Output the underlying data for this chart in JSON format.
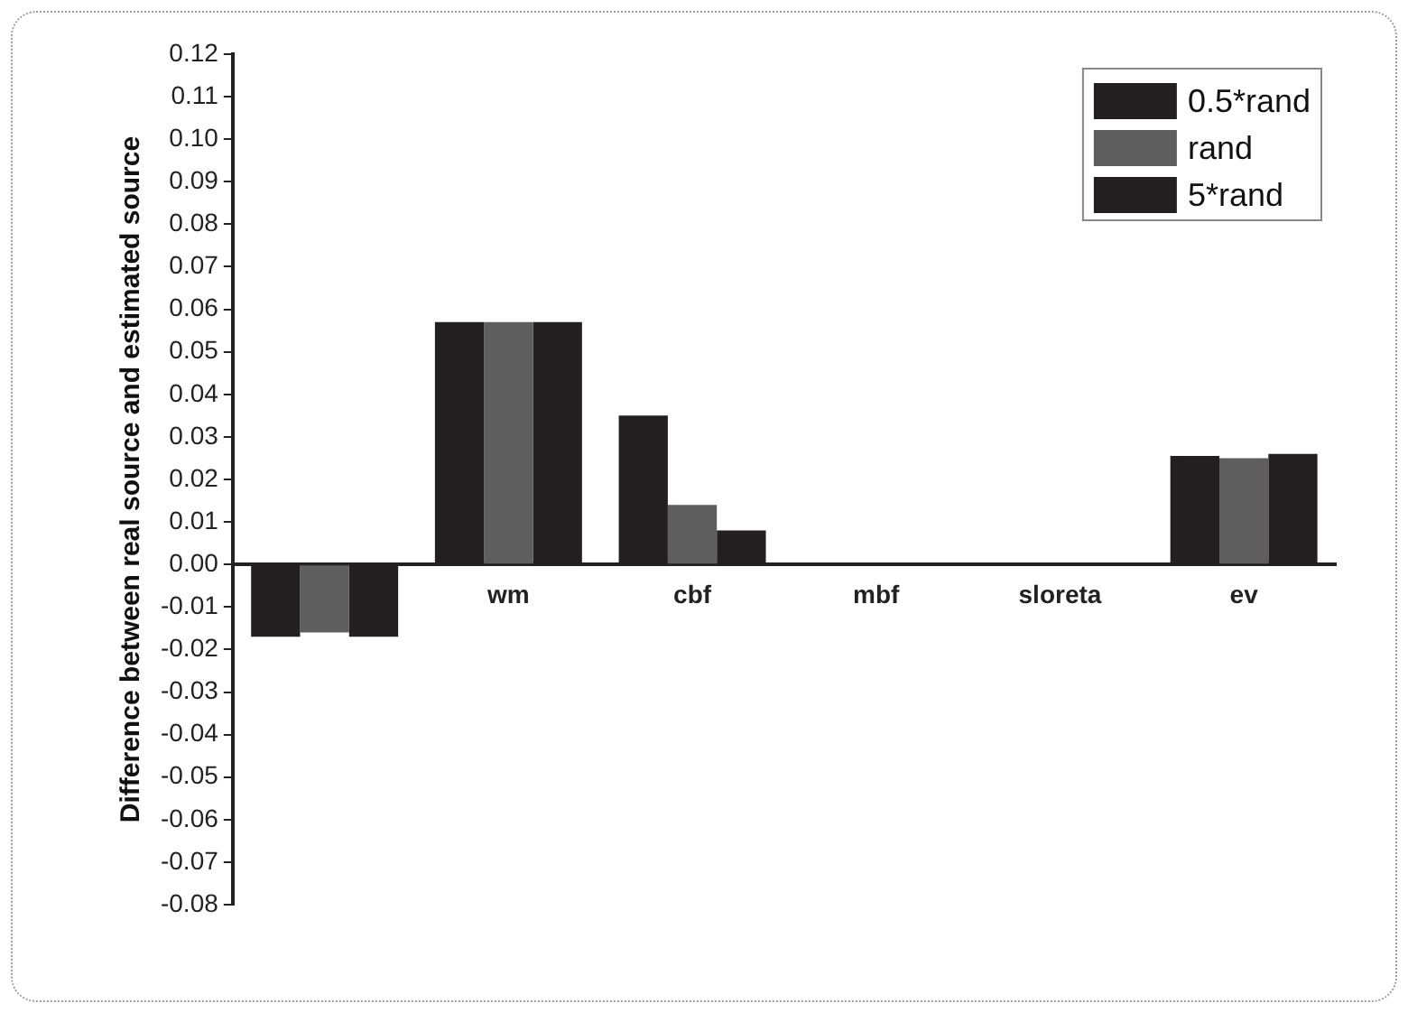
{
  "chart_data": {
    "type": "bar",
    "ylabel": "Difference between real source and estimated source",
    "categories": [
      null,
      "wm",
      "cbf",
      "mbf",
      "sloreta",
      "ev"
    ],
    "series": [
      {
        "name": "0.5*rand",
        "color": "#231f20",
        "values": [
          -0.017,
          0.057,
          0.035,
          0,
          0,
          0.0255
        ]
      },
      {
        "name": "rand",
        "color": "#5e5e5e",
        "values": [
          -0.016,
          0.057,
          0.014,
          0,
          0,
          0.025
        ]
      },
      {
        "name": "5*rand",
        "color": "#231f20",
        "values": [
          -0.017,
          0.057,
          0.008,
          0,
          0,
          0.026
        ]
      }
    ],
    "ylim": [
      -0.08,
      0.12
    ],
    "yticks": [
      {
        "value": -0.08,
        "label": "-0.08"
      },
      {
        "value": -0.07,
        "label": "-0.07"
      },
      {
        "value": -0.06,
        "label": "-0.06"
      },
      {
        "value": -0.05,
        "label": "-0.05"
      },
      {
        "value": -0.04,
        "label": "-0.04"
      },
      {
        "value": -0.03,
        "label": "-0.03"
      },
      {
        "value": -0.02,
        "label": "-0.02"
      },
      {
        "value": -0.01,
        "label": "-0.01"
      },
      {
        "value": 0,
        "label": "0.00"
      },
      {
        "value": 0.01,
        "label": "0.01"
      },
      {
        "value": 0.02,
        "label": "0.02"
      },
      {
        "value": 0.03,
        "label": "0.03"
      },
      {
        "value": 0.04,
        "label": "0.04"
      },
      {
        "value": 0.05,
        "label": "0.05"
      },
      {
        "value": 0.06,
        "label": "0.06"
      },
      {
        "value": 0.07,
        "label": "0.07"
      },
      {
        "value": 0.08,
        "label": "0.08"
      },
      {
        "value": 0.09,
        "label": "0.09"
      },
      {
        "value": 0.1,
        "label": "0.10"
      },
      {
        "value": 0.11,
        "label": "0.11"
      },
      {
        "value": 0.12,
        "label": "0.12"
      }
    ],
    "grid": false,
    "legend": "top right"
  }
}
